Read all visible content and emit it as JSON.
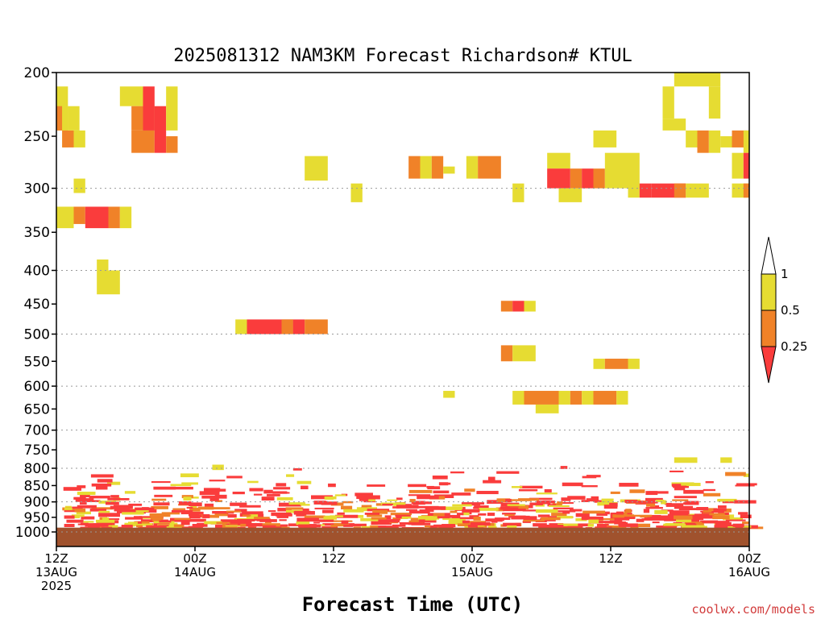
{
  "chart_data": {
    "type": "heatmap",
    "title": "2025081312 NAM3KM Forecast Richardson# KTUL",
    "xlabel": "Forecast Time (UTC)",
    "ylabel": "",
    "credit": "coolwx.com/models",
    "y_scale": "log-pressure",
    "ylim": [
      1000,
      200
    ],
    "xlim_hours": [
      0,
      60
    ],
    "y_ticks": [
      200,
      250,
      300,
      350,
      400,
      450,
      500,
      550,
      600,
      650,
      700,
      750,
      800,
      850,
      900,
      950,
      1000
    ],
    "y_grid": [
      300,
      400,
      500,
      600,
      700,
      800,
      900,
      1000
    ],
    "x_ticks": [
      {
        "hour": 0,
        "lines": [
          "12Z",
          "13AUG",
          "2025"
        ]
      },
      {
        "hour": 12,
        "lines": [
          "00Z",
          "14AUG"
        ]
      },
      {
        "hour": 24,
        "lines": [
          "12Z"
        ]
      },
      {
        "hour": 36,
        "lines": [
          "00Z",
          "15AUG"
        ]
      },
      {
        "hour": 48,
        "lines": [
          "12Z"
        ]
      },
      {
        "hour": 60,
        "lines": [
          "00Z",
          "16AUG"
        ]
      }
    ],
    "legend": {
      "placement": "right",
      "levels": [
        "1",
        "0.5",
        "0.25"
      ],
      "bins": [
        {
          "label": "0.5-1",
          "color": "#e6dc32"
        },
        {
          "label": "0.25-0.5",
          "color": "#f08228"
        },
        {
          "label": "<0.25",
          "color": "#fa3c3c"
        }
      ]
    },
    "colors": {
      "1": "#e6dc32",
      "2": "#f08228",
      "3": "#fa3c3c",
      "ground": "#a0522d"
    },
    "cells": [
      [
        0,
        1,
        210,
        245,
        1
      ],
      [
        0,
        0.5,
        225,
        245,
        2
      ],
      [
        0.5,
        1,
        225,
        245,
        1
      ],
      [
        0.5,
        1,
        245,
        260,
        1
      ],
      [
        0.5,
        1.5,
        245,
        260,
        2
      ],
      [
        1,
        2,
        225,
        245,
        1
      ],
      [
        1.5,
        2.5,
        245,
        260,
        1
      ],
      [
        1.5,
        2.5,
        290,
        305,
        1
      ],
      [
        0,
        1.5,
        320,
        345,
        1
      ],
      [
        1.5,
        2.5,
        320,
        340,
        2
      ],
      [
        2.5,
        4.5,
        320,
        345,
        3
      ],
      [
        4.5,
        5.5,
        320,
        345,
        2
      ],
      [
        5.5,
        6.5,
        320,
        345,
        1
      ],
      [
        3.5,
        4.5,
        385,
        400,
        1
      ],
      [
        3.5,
        5.5,
        400,
        435,
        1
      ],
      [
        5.5,
        7.5,
        210,
        225,
        1
      ],
      [
        6.5,
        8.5,
        225,
        245,
        2
      ],
      [
        6.5,
        8.5,
        245,
        265,
        2
      ],
      [
        7.5,
        8.5,
        210,
        245,
        3
      ],
      [
        8.5,
        9.5,
        225,
        265,
        3
      ],
      [
        9.5,
        10.5,
        210,
        245,
        1
      ],
      [
        9.5,
        10.5,
        250,
        265,
        2
      ],
      [
        15.5,
        16.5,
        475,
        500,
        1
      ],
      [
        16.5,
        20.5,
        475,
        500,
        3
      ],
      [
        19.5,
        20.5,
        475,
        500,
        2
      ],
      [
        20.5,
        21.5,
        475,
        500,
        3
      ],
      [
        21.5,
        23.5,
        475,
        500,
        2
      ],
      [
        21.5,
        23.5,
        268,
        292,
        1
      ],
      [
        25.5,
        26.5,
        295,
        315,
        1
      ],
      [
        30.5,
        31.5,
        268,
        290,
        2
      ],
      [
        31.5,
        32.5,
        268,
        290,
        1
      ],
      [
        32.5,
        33.5,
        268,
        290,
        2
      ],
      [
        33.5,
        34.5,
        278,
        285,
        1
      ],
      [
        35.5,
        36.5,
        268,
        290,
        1
      ],
      [
        36.5,
        38.5,
        268,
        290,
        2
      ],
      [
        39.5,
        40.5,
        295,
        315,
        1
      ],
      [
        38.5,
        39.5,
        445,
        462,
        2
      ],
      [
        39.5,
        40.5,
        445,
        462,
        3
      ],
      [
        40.5,
        41.5,
        445,
        462,
        1
      ],
      [
        38.5,
        39.5,
        520,
        550,
        2
      ],
      [
        39.5,
        41.5,
        520,
        550,
        1
      ],
      [
        33.5,
        34.5,
        610,
        625,
        1
      ],
      [
        39.5,
        40.5,
        610,
        640,
        1
      ],
      [
        40.5,
        43.5,
        610,
        640,
        2
      ],
      [
        41.5,
        43.5,
        640,
        660,
        1
      ],
      [
        43.5,
        44.5,
        610,
        640,
        1
      ],
      [
        44.5,
        45.5,
        610,
        640,
        2
      ],
      [
        45.5,
        46.5,
        610,
        640,
        1
      ],
      [
        46.5,
        48.5,
        610,
        640,
        2
      ],
      [
        48.5,
        49.5,
        610,
        640,
        1
      ],
      [
        46.5,
        47.5,
        545,
        565,
        1
      ],
      [
        47.5,
        49.5,
        545,
        565,
        2
      ],
      [
        49.5,
        50.5,
        545,
        565,
        1
      ],
      [
        42.5,
        44.5,
        265,
        280,
        1
      ],
      [
        42.5,
        44.5,
        280,
        300,
        3
      ],
      [
        44.5,
        45.5,
        280,
        300,
        2
      ],
      [
        45.5,
        46.5,
        280,
        300,
        3
      ],
      [
        46.5,
        47.5,
        280,
        300,
        2
      ],
      [
        47.5,
        50.5,
        265,
        300,
        1
      ],
      [
        43.5,
        45.5,
        300,
        315,
        1
      ],
      [
        46.5,
        48.5,
        245,
        260,
        1
      ],
      [
        49.5,
        50.5,
        295,
        310,
        1
      ],
      [
        50.5,
        51.5,
        295,
        310,
        3
      ],
      [
        51.5,
        54.5,
        295,
        310,
        3
      ],
      [
        53.5,
        54.5,
        295,
        310,
        2
      ],
      [
        54.5,
        56.5,
        295,
        310,
        1
      ],
      [
        53.5,
        55.5,
        200,
        210,
        1
      ],
      [
        52.5,
        53.5,
        210,
        235,
        1
      ],
      [
        52.5,
        54.5,
        235,
        245,
        1
      ],
      [
        55.5,
        57.5,
        200,
        210,
        1
      ],
      [
        56.5,
        57.5,
        210,
        235,
        1
      ],
      [
        54.5,
        55.5,
        245,
        260,
        1
      ],
      [
        55.5,
        56.5,
        245,
        265,
        2
      ],
      [
        56.5,
        57.5,
        245,
        265,
        1
      ],
      [
        57.5,
        58.5,
        250,
        260,
        1
      ],
      [
        58.5,
        60,
        245,
        260,
        2
      ],
      [
        59.5,
        60,
        245,
        265,
        1
      ],
      [
        58.5,
        59.5,
        265,
        290,
        1
      ],
      [
        59.5,
        60,
        265,
        290,
        3
      ],
      [
        58.5,
        60,
        295,
        310,
        1
      ],
      [
        59.5,
        60,
        295,
        310,
        2
      ],
      [
        53.5,
        55.5,
        770,
        785,
        1
      ],
      [
        57.5,
        58.5,
        770,
        785,
        1
      ],
      [
        59.5,
        60,
        815,
        825,
        1
      ],
      [
        13.5,
        14.5,
        790,
        805,
        1
      ]
    ],
    "low_level_mix": {
      "p_range": [
        790,
        985
      ],
      "note": "dense thin layers of all three categories near the surface"
    },
    "ground_pressure": 985
  }
}
